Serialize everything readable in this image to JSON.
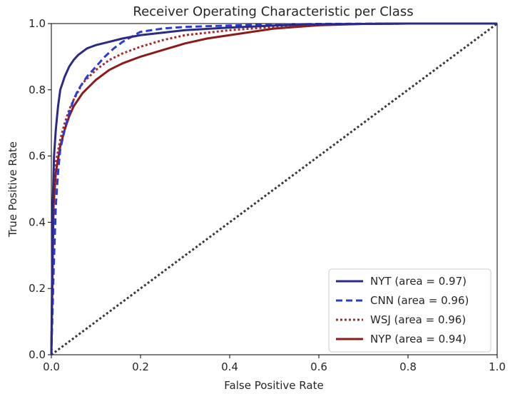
{
  "chart_data": {
    "type": "line",
    "title": "Receiver Operating Characteristic per Class",
    "xlabel": "False Positive Rate",
    "ylabel": "True Positive Rate",
    "xlim": [
      0.0,
      1.0
    ],
    "ylim": [
      0.0,
      1.0
    ],
    "xticks": [
      "0.0",
      "0.2",
      "0.4",
      "0.6",
      "0.8",
      "1.0"
    ],
    "yticks": [
      "0.0",
      "0.2",
      "0.4",
      "0.6",
      "0.8",
      "1.0"
    ],
    "grid": false,
    "legend_position": "lower-right",
    "series": [
      {
        "name": "NYT (area = 0.97)",
        "color": "#2b2b85",
        "style": "solid",
        "x": [
          0.0,
          0.003,
          0.006,
          0.01,
          0.015,
          0.02,
          0.03,
          0.04,
          0.05,
          0.06,
          0.08,
          0.1,
          0.13,
          0.16,
          0.2,
          0.3,
          0.4,
          0.5,
          0.6,
          0.8,
          1.0
        ],
        "y": [
          0.0,
          0.45,
          0.6,
          0.68,
          0.75,
          0.8,
          0.84,
          0.87,
          0.89,
          0.905,
          0.925,
          0.935,
          0.945,
          0.955,
          0.965,
          0.98,
          0.988,
          0.994,
          0.998,
          1.0,
          1.0
        ]
      },
      {
        "name": "CNN (area = 0.96)",
        "color": "#2b3bd6",
        "style": "dashed",
        "x": [
          0.0,
          0.005,
          0.01,
          0.015,
          0.02,
          0.03,
          0.04,
          0.05,
          0.06,
          0.08,
          0.1,
          0.12,
          0.14,
          0.16,
          0.18,
          0.2,
          0.25,
          0.3,
          0.4,
          0.5,
          0.6,
          0.8,
          1.0
        ],
        "y": [
          0.0,
          0.25,
          0.45,
          0.55,
          0.62,
          0.68,
          0.73,
          0.77,
          0.8,
          0.84,
          0.87,
          0.9,
          0.925,
          0.945,
          0.96,
          0.975,
          0.985,
          0.99,
          0.994,
          0.997,
          0.999,
          1.0,
          1.0
        ]
      },
      {
        "name": "WSJ (area = 0.96)",
        "color": "#a52a2a",
        "style": "dotted",
        "x": [
          0.0,
          0.005,
          0.01,
          0.02,
          0.03,
          0.04,
          0.05,
          0.07,
          0.1,
          0.13,
          0.16,
          0.2,
          0.25,
          0.3,
          0.4,
          0.5,
          0.6,
          0.7,
          0.8,
          1.0
        ],
        "y": [
          0.0,
          0.5,
          0.58,
          0.65,
          0.7,
          0.74,
          0.77,
          0.82,
          0.86,
          0.89,
          0.91,
          0.93,
          0.95,
          0.965,
          0.98,
          0.99,
          0.997,
          0.999,
          1.0,
          1.0
        ]
      },
      {
        "name": "NYP (area = 0.94)",
        "color": "#8b1a1a",
        "style": "solid",
        "x": [
          0.0,
          0.005,
          0.01,
          0.02,
          0.03,
          0.04,
          0.05,
          0.07,
          0.1,
          0.13,
          0.16,
          0.2,
          0.25,
          0.3,
          0.35,
          0.4,
          0.5,
          0.6,
          0.7,
          0.8,
          1.0
        ],
        "y": [
          0.0,
          0.45,
          0.55,
          0.63,
          0.68,
          0.72,
          0.75,
          0.79,
          0.83,
          0.86,
          0.88,
          0.9,
          0.92,
          0.94,
          0.955,
          0.965,
          0.985,
          0.995,
          0.999,
          1.0,
          1.0
        ]
      },
      {
        "name": "",
        "color": "#3a3a3a",
        "style": "dotted",
        "x": [
          0.0,
          1.0
        ],
        "y": [
          0.0,
          1.0
        ]
      }
    ]
  }
}
